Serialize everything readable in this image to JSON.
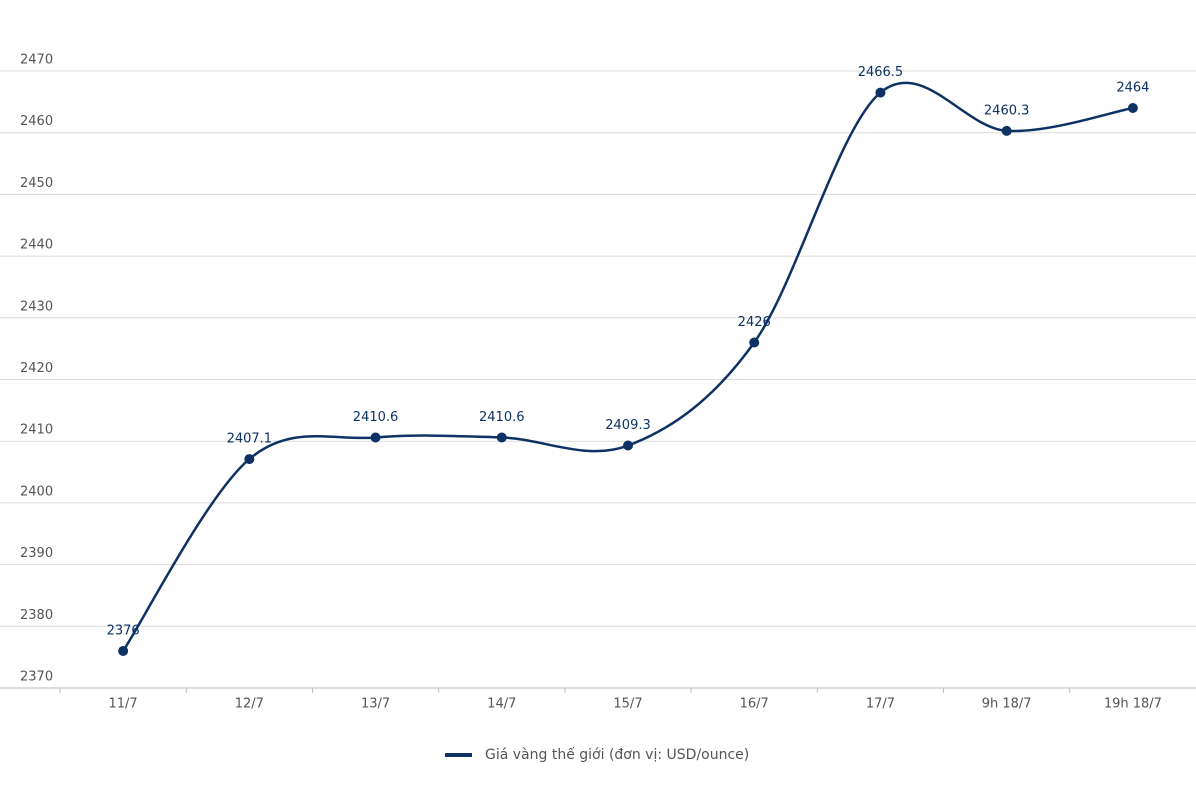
{
  "chart_data": {
    "type": "line",
    "categories": [
      "11/7",
      "12/7",
      "13/7",
      "14/7",
      "15/7",
      "16/7",
      "17/7",
      "9h 18/7",
      "19h 18/7"
    ],
    "series": [
      {
        "name": "Giá vàng thế giới (đơn vị: USD/ounce)",
        "color": "#0e3263",
        "values": [
          2376,
          2407.1,
          2410.6,
          2410.6,
          2409.3,
          2426,
          2466.5,
          2460.3,
          2464
        ]
      }
    ],
    "ylim": [
      2370,
      2470
    ],
    "yticks": [
      2370,
      2380,
      2390,
      2400,
      2410,
      2420,
      2430,
      2440,
      2450,
      2460,
      2470
    ],
    "grid": true,
    "legend": "bottom"
  }
}
